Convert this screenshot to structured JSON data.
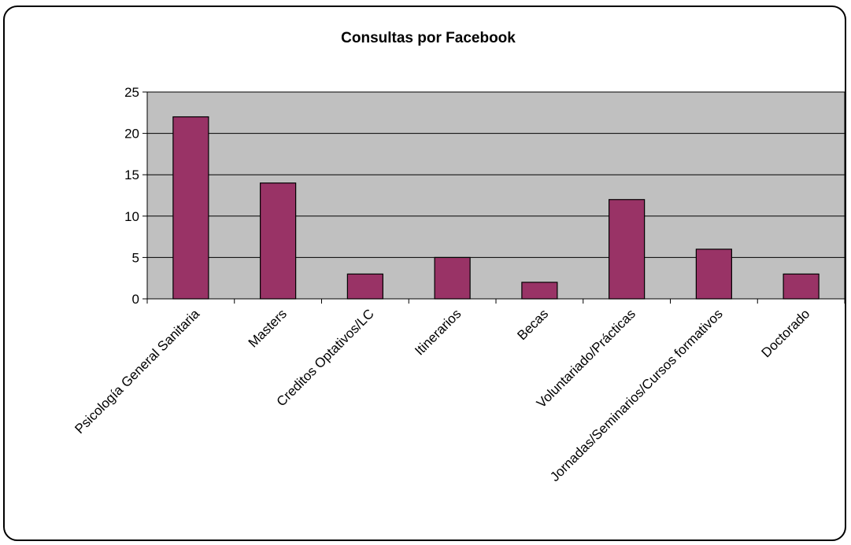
{
  "chart_data": {
    "type": "bar",
    "title": "Consultas por Facebook",
    "xlabel": "",
    "ylabel": "",
    "categories": [
      "Psicología General Sanitaria",
      "Masters",
      "Creditos Optativos/LC",
      "Itinerarios",
      "Becas",
      "Voluntariado/Prácticas",
      "Jornadas/Seminarios/Cursos formativos",
      "Doctorado"
    ],
    "values": [
      22,
      14,
      3,
      5,
      2,
      12,
      6,
      3
    ],
    "ylim": [
      0,
      25
    ],
    "yticks": [
      0,
      5,
      10,
      15,
      20,
      25
    ],
    "grid": true,
    "legend": "none",
    "colors": {
      "bar_fill": "#993366",
      "plot_background": "#c0c0c0",
      "gridline": "#000000",
      "border": "#000000"
    }
  }
}
